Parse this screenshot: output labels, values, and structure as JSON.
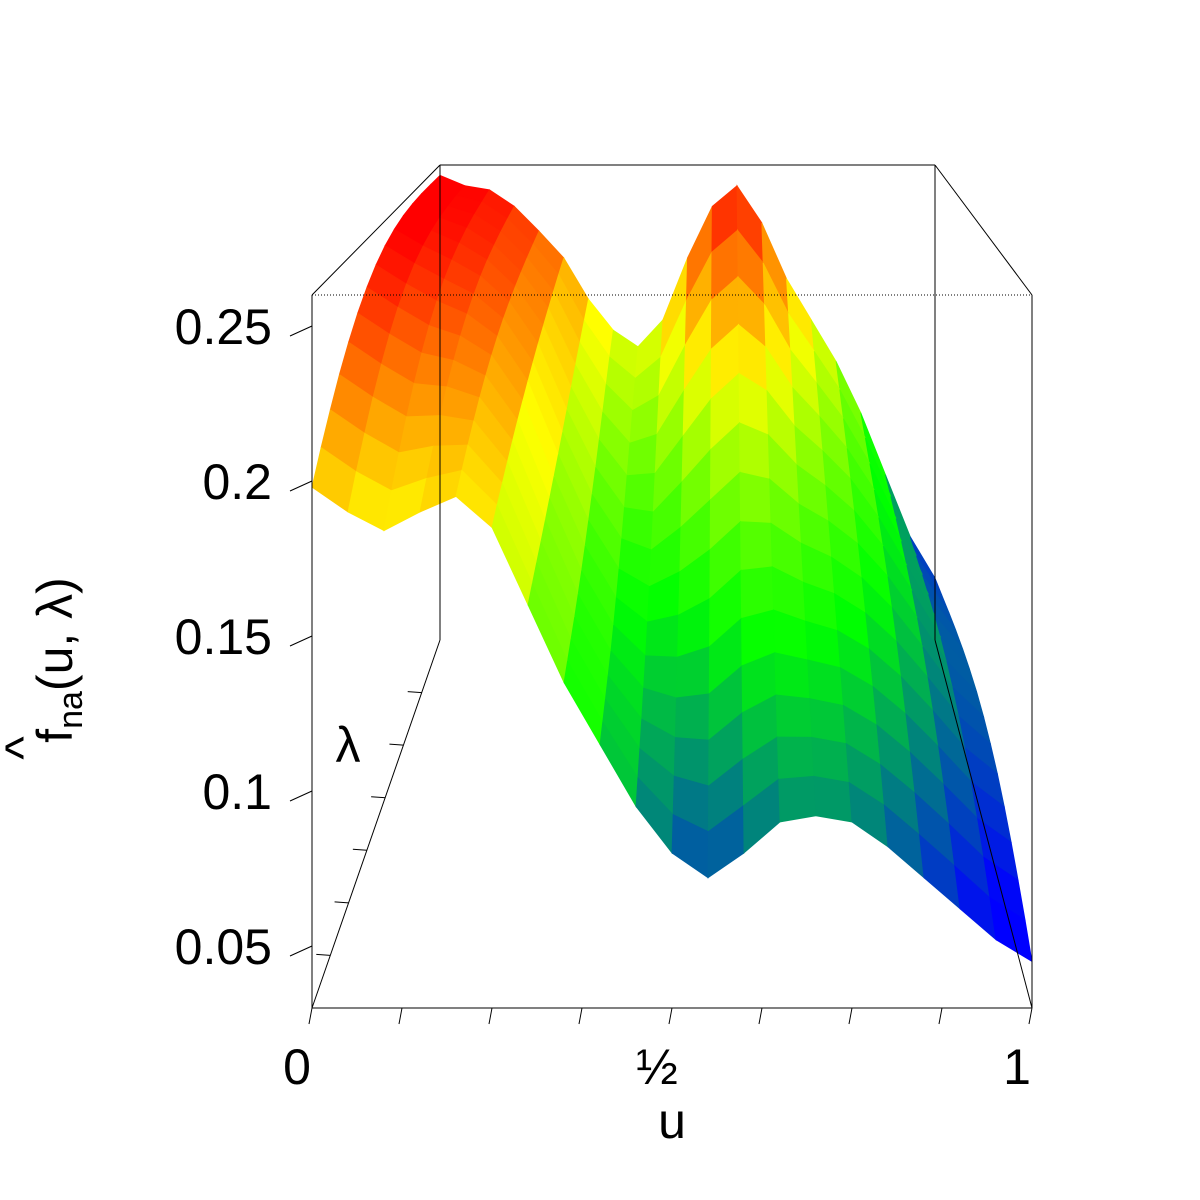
{
  "chart_data": {
    "type": "surface3d",
    "x_axis": {
      "label": "u",
      "range": [
        0,
        1
      ],
      "ticks": [
        {
          "value": 0,
          "label": "0"
        },
        {
          "value": 0.5,
          "label": "½"
        },
        {
          "value": 1,
          "label": "1"
        }
      ],
      "minor_tick_values": [
        0.125,
        0.25,
        0.375,
        0.625,
        0.75,
        0.875
      ]
    },
    "y_axis": {
      "label": "λ",
      "range": [
        0,
        0.5
      ],
      "ticks": []
    },
    "z_axis": {
      "label": "f_na(u, λ)",
      "label_parts": {
        "symbol": "f",
        "hat": "^",
        "subscript": "na",
        "args": "(u, λ)"
      },
      "range": [
        0.03,
        0.26
      ],
      "ticks": [
        {
          "value": 0.05,
          "label": "0.05"
        },
        {
          "value": 0.1,
          "label": "0.1"
        },
        {
          "value": 0.15,
          "label": "0.15"
        },
        {
          "value": 0.2,
          "label": "0.2"
        },
        {
          "value": 0.25,
          "label": "0.25"
        }
      ]
    },
    "front_profile": {
      "lambda": 0,
      "u": [
        0.0,
        0.05,
        0.1,
        0.15,
        0.2,
        0.25,
        0.3,
        0.35,
        0.4,
        0.45,
        0.5,
        0.55,
        0.6,
        0.65,
        0.7,
        0.75,
        0.8,
        0.85,
        0.9,
        0.95,
        1.0
      ],
      "f": [
        0.198,
        0.19,
        0.184,
        0.19,
        0.195,
        0.185,
        0.16,
        0.135,
        0.115,
        0.095,
        0.08,
        0.072,
        0.08,
        0.09,
        0.092,
        0.09,
        0.082,
        0.072,
        0.062,
        0.052,
        0.045
      ]
    },
    "back_profile": {
      "lambda": 0.5,
      "u": [
        0.0,
        0.05,
        0.1,
        0.15,
        0.2,
        0.25,
        0.3,
        0.35,
        0.4,
        0.45,
        0.5,
        0.55,
        0.6,
        0.65,
        0.7,
        0.75,
        0.8,
        0.85,
        0.9,
        0.95,
        1.0
      ],
      "f": [
        0.255,
        0.25,
        0.248,
        0.24,
        0.228,
        0.215,
        0.195,
        0.18,
        0.172,
        0.185,
        0.215,
        0.24,
        0.25,
        0.232,
        0.205,
        0.185,
        0.165,
        0.14,
        0.11,
        0.08,
        0.06
      ]
    },
    "color_scale": [
      "#0000ff",
      "#00ff00",
      "#ffff00",
      "#ff0000"
    ],
    "view": {
      "theta_deg": 0,
      "phi_deg": 20
    },
    "grid": false
  }
}
